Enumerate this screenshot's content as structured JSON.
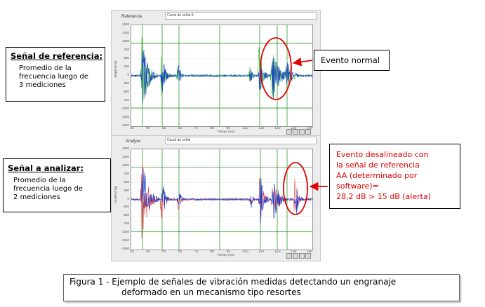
{
  "top_panel": {
    "title": "Referencia",
    "channel_field": "Canal de señal A",
    "y_axis_label": "Amplitud (g)",
    "x_axis_label": "Tiempo (ms)",
    "y_ticks": [
      "1500",
      "1250",
      "1000",
      "750",
      "500",
      "250",
      "0",
      "-250",
      "-500",
      "-750",
      "-1000",
      "-1250",
      "-1500"
    ],
    "x_ticks": [
      "30",
      "40",
      "50",
      "60",
      "70",
      "80",
      "90",
      "100",
      "110",
      "120",
      "130",
      "140"
    ]
  },
  "bottom_panel": {
    "title": "Analyse",
    "channel_field": "Canal de señal",
    "y_axis_label": "Amplitud (g)",
    "x_axis_label": "Tiempo (ms)",
    "y_ticks": [
      "1500",
      "1250",
      "1000",
      "750",
      "500",
      "250",
      "0",
      "-250",
      "-500",
      "-750",
      "-1000",
      "-1250",
      "-1500"
    ],
    "x_ticks": [
      "30",
      "40",
      "50",
      "60",
      "70",
      "80",
      "90",
      "100",
      "110",
      "120",
      "130",
      "140"
    ]
  },
  "ref_callout": {
    "heading": "Señal de referencia:",
    "lines": [
      "Promedio de la",
      "frecuencia luego de",
      "3 mediciones"
    ]
  },
  "analyze_callout": {
    "heading": "Señal a analizar:",
    "lines": [
      "Promedio de la",
      "frecuencia luego de",
      "2 mediciones"
    ]
  },
  "normal_event": {
    "label": "Evento normal"
  },
  "misaligned_event": {
    "lines": [
      "Evento desalineado con",
      "la señal de referencia",
      "AA (determinado por",
      "software)=",
      "28,2 dB > 15 dB (alerta)"
    ]
  },
  "caption": {
    "line1": "Figura 1 - Ejemplo de señales de vibración medidas detectando un engranaje",
    "line2": "deformado en un mecanismo tipo resortes"
  },
  "colors": {
    "reference_trace": "#1a3dcc",
    "reference_overlay": "#2ab52a",
    "analyze_trace": "#1a3dcc",
    "analyze_overlay": "#e03a3a",
    "marker_lines": "#2d9a2d",
    "event_highlight": "#e00000"
  }
}
